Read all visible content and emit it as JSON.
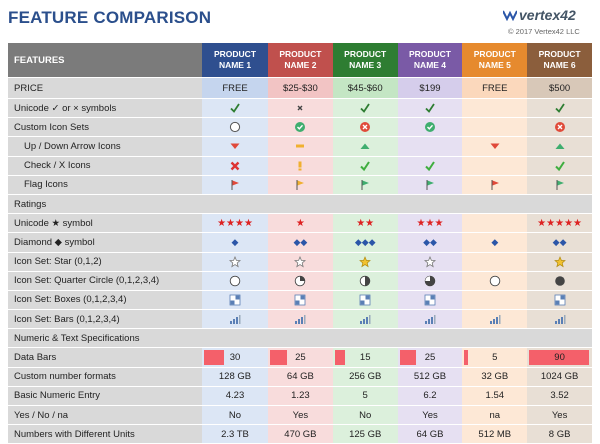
{
  "header": {
    "title": "FEATURE COMPARISON",
    "logo": "vertex42",
    "copyright": "© 2017 Vertex42 LLC"
  },
  "colors": {
    "p1": "#2f4f8f",
    "p2": "#c0504d",
    "p3": "#2e7d32",
    "p4": "#7a5aa6",
    "p5": "#e68a2e",
    "p6": "#8b5e3c"
  },
  "table": {
    "features_label": "FEATURES",
    "products": [
      {
        "line1": "PRODUCT",
        "line2": "NAME 1"
      },
      {
        "line1": "PRODUCT",
        "line2": "NAME 2"
      },
      {
        "line1": "PRODUCT",
        "line2": "NAME 3"
      },
      {
        "line1": "PRODUCT",
        "line2": "NAME 4"
      },
      {
        "line1": "PRODUCT",
        "line2": "NAME 5"
      },
      {
        "line1": "PRODUCT",
        "line2": "NAME 6"
      }
    ],
    "price": {
      "label": "PRICE",
      "values": [
        "FREE",
        "$25-$30",
        "$45-$60",
        "$199",
        "FREE",
        "$500"
      ]
    },
    "rows": [
      {
        "label": "Unicode ✓ or × symbols",
        "icons": [
          "check",
          "x-small",
          "check",
          "check",
          "",
          "check"
        ]
      },
      {
        "label": "Custom Icon Sets",
        "icons": [
          "circle-empty",
          "circle-check",
          "circle-x",
          "circle-check",
          "",
          "circle-x"
        ]
      },
      {
        "label": "Up / Down Arrow Icons",
        "indent": true,
        "icons": [
          "tri-down",
          "dash",
          "tri-up",
          "",
          "tri-down",
          "tri-up"
        ]
      },
      {
        "label": "Check / X Icons",
        "indent": true,
        "icons": [
          "x-red",
          "excl",
          "check-green",
          "check-green",
          "",
          "check-green"
        ]
      },
      {
        "label": "Flag Icons",
        "indent": true,
        "icons": [
          "flag-red",
          "flag-yellow",
          "flag-green",
          "flag-green",
          "flag-red",
          "flag-green"
        ]
      }
    ],
    "ratings": {
      "section_label": "Ratings",
      "rows": [
        {
          "label": "Unicode ★ symbol",
          "kind": "stars",
          "values": [
            "★★★★",
            "★",
            "★★",
            "★★★",
            "",
            "★★★★★"
          ]
        },
        {
          "label": "Diamond ◆ symbol",
          "kind": "diamonds",
          "values": [
            "◆",
            "◆◆",
            "◆◆◆",
            "◆◆",
            "◆",
            "◆◆"
          ]
        },
        {
          "label": "Icon Set: Star (0,1,2)",
          "icons": [
            "star-empty",
            "star-empty",
            "star-full",
            "star-empty",
            "",
            "star-full"
          ]
        },
        {
          "label": "Icon Set: Quarter Circle (0,1,2,3,4)",
          "icons": [
            "q0",
            "q1",
            "q2",
            "q3",
            "q0",
            "q4"
          ]
        },
        {
          "label": "Icon Set: Boxes (0,1,2,3,4)",
          "icons": [
            "box",
            "box",
            "box",
            "box",
            "",
            "box"
          ]
        },
        {
          "label": "Icon Set: Bars (0,1,2,3,4)",
          "icons": [
            "bars",
            "bars",
            "bars",
            "bars",
            "bars",
            "bars"
          ]
        }
      ]
    },
    "numeric": {
      "section_label": "Numeric & Text Specifications",
      "data_bars": {
        "label": "Data Bars",
        "values": [
          30,
          25,
          15,
          25,
          5,
          90
        ],
        "max": 90
      },
      "rows": [
        {
          "label": "Custom number formats",
          "values": [
            "128 GB",
            "64 GB",
            "256 GB",
            "512 GB",
            "32 GB",
            "1024 GB"
          ]
        },
        {
          "label": "Basic Numeric Entry",
          "values": [
            "4.23",
            "1.23",
            "5",
            "6.2",
            "1.54",
            "3.52"
          ]
        },
        {
          "label": "Yes / No / na",
          "values": [
            "No",
            "Yes",
            "No",
            "Yes",
            "na",
            "Yes"
          ]
        },
        {
          "label": "Numbers with Different Units",
          "values": [
            "2.3 TB",
            "470 GB",
            "125 GB",
            "64 GB",
            "512 MB",
            "8 GB"
          ]
        }
      ]
    }
  }
}
